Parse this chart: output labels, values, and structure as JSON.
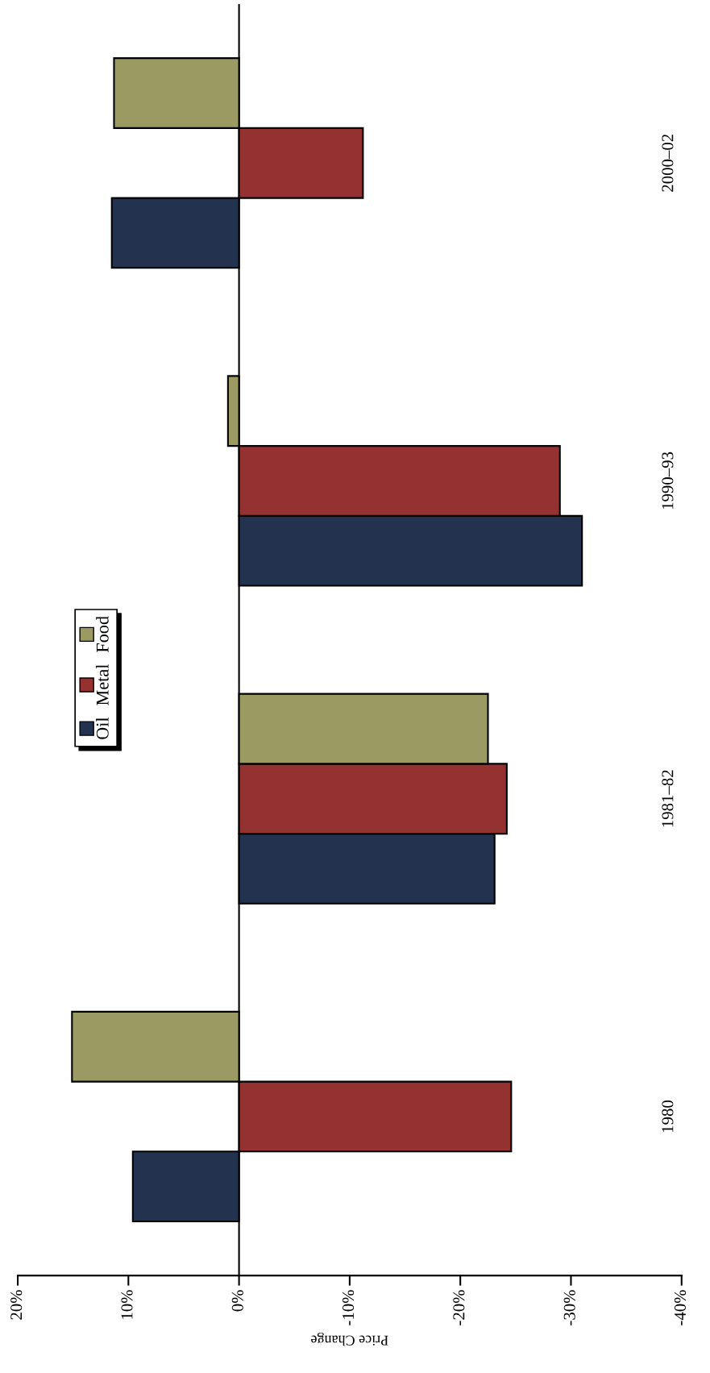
{
  "chart_data": {
    "type": "bar",
    "orientation": "horizontal",
    "xlabel": "Price Change",
    "categories": [
      "2000–02",
      "1990–93",
      "1981–82",
      "1980"
    ],
    "series": [
      {
        "name": "Oil",
        "color": "#23324f",
        "values": [
          11.5,
          -31.0,
          -23.1,
          9.6
        ]
      },
      {
        "name": "Metal",
        "color": "#943232",
        "values": [
          -11.2,
          -29.0,
          -24.2,
          -24.6
        ]
      },
      {
        "name": "Food",
        "color": "#9a9a62",
        "values": [
          11.3,
          1.0,
          -22.5,
          15.1
        ]
      }
    ],
    "xlim": [
      20,
      -40
    ],
    "xticks": [
      {
        "value": 20,
        "label": "20%"
      },
      {
        "value": 10,
        "label": "10%"
      },
      {
        "value": 0,
        "label": "0%"
      },
      {
        "value": -10,
        "label": "-10%"
      },
      {
        "value": -20,
        "label": "-20%"
      },
      {
        "value": -30,
        "label": "-30%"
      },
      {
        "value": -40,
        "label": "-40%"
      }
    ],
    "ref_lines": [
      {
        "axis": "x",
        "value": 0,
        "color": "#000000",
        "line_style": "solid"
      }
    ],
    "legend": "left",
    "grid": false
  }
}
